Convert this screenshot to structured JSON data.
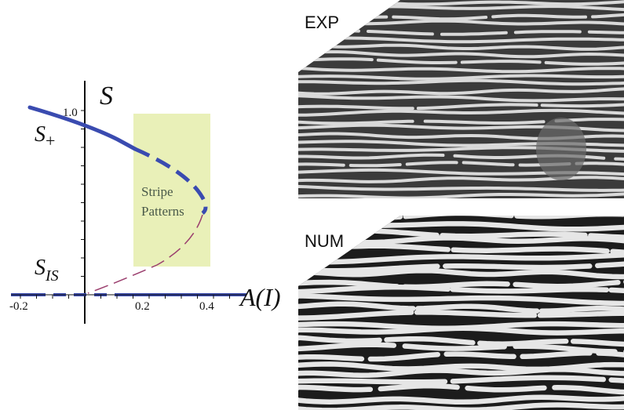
{
  "plot": {
    "y_axis_label": "S",
    "x_axis_label": "A(I)",
    "y_tick_label": "1.0",
    "x_tick_labels": [
      "-0.2",
      "0.2",
      "0.4"
    ],
    "branch_upper_label": "S",
    "branch_upper_sub": "+",
    "branch_lower_label": "S",
    "branch_lower_sub": "IS",
    "region_line1": "Stripe",
    "region_line2": "Patterns",
    "colors": {
      "solid_branch": "#3a4bb0",
      "unstable_branch": "#9b3f6e",
      "region_fill": "#e9f0b8",
      "axis": "#111111"
    }
  },
  "panels": {
    "experiment_label": "EXP",
    "numerical_label": "NUM"
  }
}
